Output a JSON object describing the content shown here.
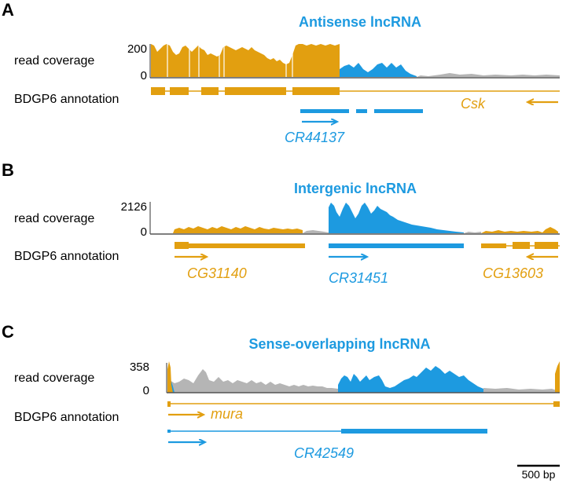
{
  "colors": {
    "gold": "#e29f10",
    "blue": "#1d9ae0",
    "gray": "#b5b5b5",
    "axis": "#555555",
    "text": "#000000"
  },
  "panels": [
    {
      "letter": "A",
      "title": "Antisense lncRNA",
      "coverage_label": "read coverage",
      "annotation_label": "BDGP6 annotation",
      "ymax_label": "200",
      "ymin_label": "0",
      "genes": [
        {
          "name": "Csk",
          "color": "gold",
          "strand": "-"
        },
        {
          "name": "CR44137",
          "color": "blue",
          "strand": "+"
        }
      ]
    },
    {
      "letter": "B",
      "title": "Intergenic lncRNA",
      "coverage_label": "read coverage",
      "annotation_label": "BDGP6 annotation",
      "ymax_label": "2126",
      "ymin_label": "0",
      "genes": [
        {
          "name": "CG31140",
          "color": "gold",
          "strand": "+"
        },
        {
          "name": "CR31451",
          "color": "blue",
          "strand": "+"
        },
        {
          "name": "CG13603",
          "color": "gold",
          "strand": "-"
        }
      ]
    },
    {
      "letter": "C",
      "title": "Sense-overlapping lncRNA",
      "coverage_label": "read coverage",
      "annotation_label": "BDGP6 annotation",
      "ymax_label": "358",
      "ymin_label": "0",
      "genes": [
        {
          "name": "mura",
          "color": "gold",
          "strand": "+"
        },
        {
          "name": "CR42549",
          "color": "blue",
          "strand": "+"
        }
      ]
    }
  ],
  "scale_bar": {
    "label": "500 bp"
  }
}
